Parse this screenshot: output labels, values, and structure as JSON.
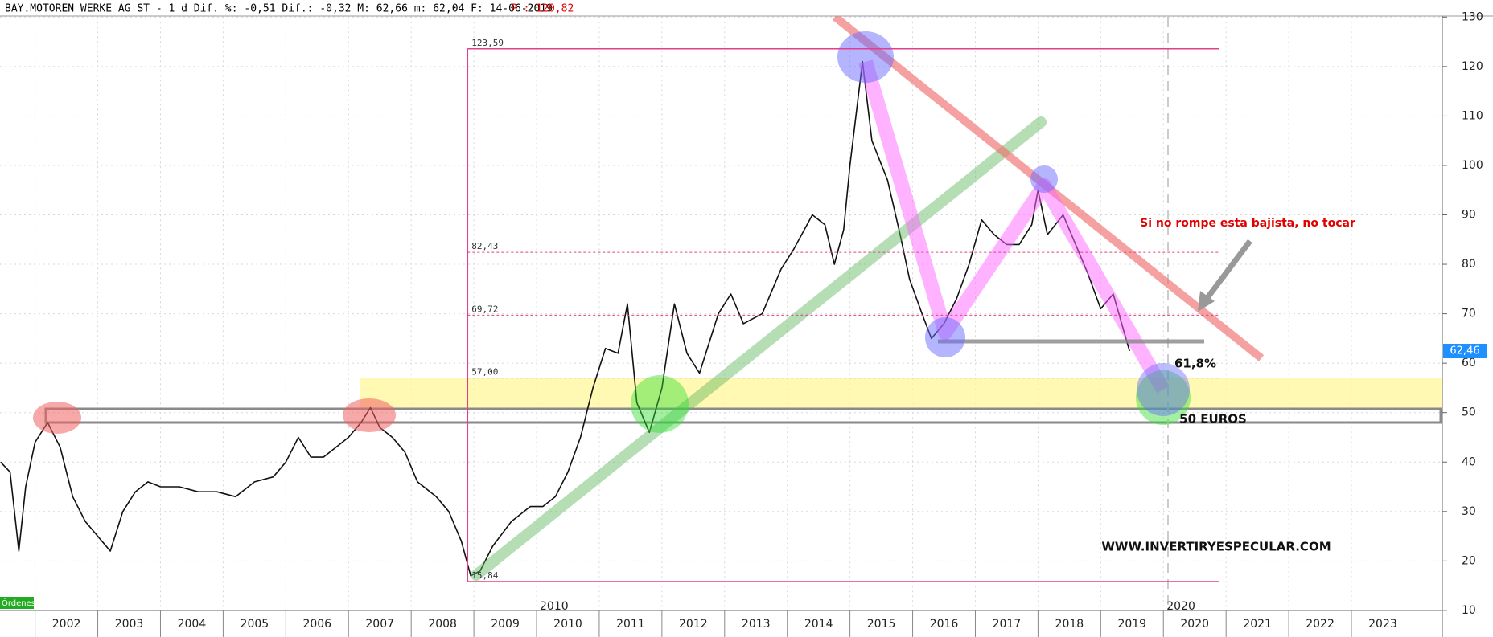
{
  "chart_data": {
    "type": "line",
    "title": "BAY.MOTOREN WERKE AG ST -  1 d Dif. %: -0,51 Dif.: -0,32 M: 62,66 m: 62,04 F: 14-06-2019",
    "title_extra": "P : 120,82",
    "xlim": [
      2001.44,
      2024.45
    ],
    "ylim": [
      10,
      130
    ],
    "xticks": [
      2002,
      2003,
      2004,
      2005,
      2006,
      2007,
      2008,
      2009,
      2010,
      2011,
      2012,
      2013,
      2014,
      2015,
      2016,
      2017,
      2018,
      2019,
      2020,
      2021,
      2022,
      2023
    ],
    "yticks": [
      10,
      20,
      30,
      40,
      50,
      60,
      70,
      80,
      90,
      100,
      110,
      120,
      130
    ],
    "decade_labels": [
      2010,
      2020
    ],
    "grid": true,
    "series": [
      {
        "name": "BAY.MOTOREN WERKE AG ST",
        "color": "#111111",
        "x": [
          2001.45,
          2001.6,
          2001.74,
          2001.85,
          2002.0,
          2002.2,
          2002.4,
          2002.6,
          2002.8,
          2003.0,
          2003.2,
          2003.4,
          2003.6,
          2003.8,
          2004.0,
          2004.3,
          2004.6,
          2004.9,
          2005.2,
          2005.5,
          2005.8,
          2006.0,
          2006.2,
          2006.4,
          2006.6,
          2006.9,
          2007.0,
          2007.2,
          2007.35,
          2007.5,
          2007.7,
          2007.9,
          2008.1,
          2008.4,
          2008.6,
          2008.8,
          2008.95,
          2009.1,
          2009.3,
          2009.6,
          2009.9,
          2010.1,
          2010.3,
          2010.5,
          2010.7,
          2010.9,
          2011.1,
          2011.3,
          2011.45,
          2011.6,
          2011.8,
          2012.0,
          2012.2,
          2012.4,
          2012.6,
          2012.9,
          2013.1,
          2013.3,
          2013.6,
          2013.9,
          2014.1,
          2014.4,
          2014.6,
          2014.75,
          2014.9,
          2015.0,
          2015.2,
          2015.35,
          2015.6,
          2015.8,
          2015.95,
          2016.15,
          2016.3,
          2016.5,
          2016.7,
          2016.9,
          2017.1,
          2017.3,
          2017.5,
          2017.7,
          2017.9,
          2018.0,
          2018.15,
          2018.4,
          2018.6,
          2018.8,
          2019.0,
          2019.2,
          2019.46
        ],
        "values": [
          40,
          38,
          22,
          35,
          44,
          48,
          43,
          33,
          28,
          25,
          22,
          30,
          34,
          36,
          35,
          35,
          34,
          34,
          33,
          36,
          37,
          40,
          45,
          41,
          41,
          44,
          45,
          48,
          51,
          47,
          45,
          42,
          36,
          33,
          30,
          24,
          17,
          18,
          23,
          28,
          31,
          31,
          33,
          38,
          45,
          55,
          63,
          62,
          72,
          52,
          46,
          55,
          72,
          62,
          58,
          70,
          74,
          68,
          70,
          79,
          83,
          90,
          88,
          80,
          87,
          100,
          121,
          105,
          97,
          86,
          77,
          70,
          65,
          68,
          73,
          80,
          89,
          86,
          84,
          84,
          88,
          95,
          86,
          90,
          84,
          78,
          71,
          74,
          62.46
        ]
      }
    ],
    "last_price": {
      "value": 62.46,
      "label": "62,46"
    },
    "fib_levels": [
      {
        "value": 123.59,
        "label": "123,59"
      },
      {
        "value": 82.43,
        "label": "82,43"
      },
      {
        "value": 69.72,
        "label": "69,72"
      },
      {
        "value": 57.0,
        "label": "57,00"
      },
      {
        "value": 15.84,
        "label": "15,84"
      }
    ],
    "annotations": [
      "Si no rompe esta bajista, no tocar",
      "61,8%",
      "50 EUROS",
      "WWW.INVERTIRYESPECULAR.COM",
      "Órdenes"
    ]
  }
}
